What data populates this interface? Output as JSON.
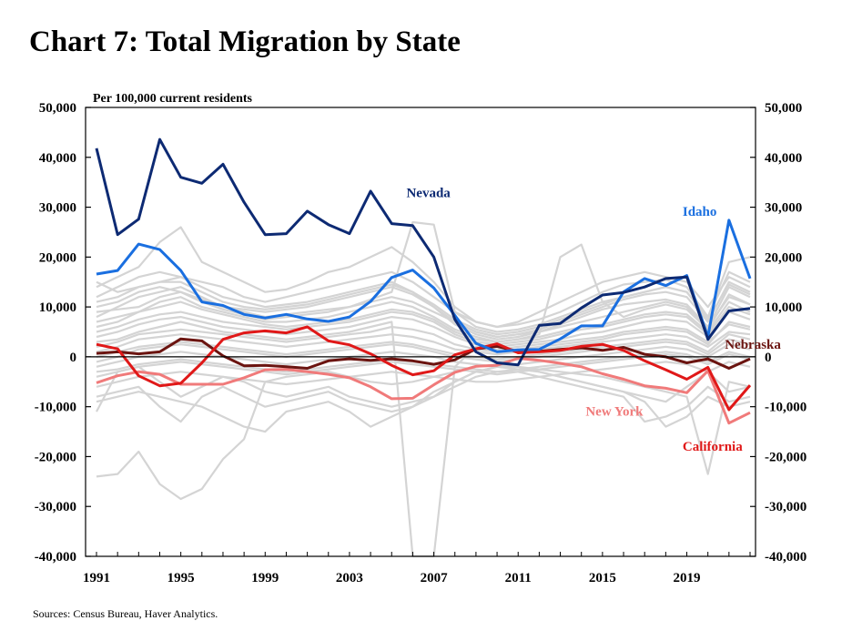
{
  "title": "Chart 7: Total Migration by State",
  "source": "Sources: Census Bureau, Haver Analytics.",
  "chart_data": {
    "type": "line",
    "title": "Chart 7: Total Migration by State",
    "unit_label": "Per 100,000 current residents",
    "xlabel": "",
    "ylabel": "",
    "xlim": [
      1991,
      2022
    ],
    "ylim": [
      -40000,
      50000
    ],
    "x_ticks": [
      "1991",
      "1995",
      "1999",
      "2003",
      "2007",
      "2011",
      "2015",
      "2019"
    ],
    "y_ticks_left": [
      "50,000",
      "40,000",
      "30,000",
      "20,000",
      "10,000",
      "0",
      "-10,000",
      "-20,000",
      "-30,000",
      "-40,000"
    ],
    "y_ticks_right": [
      "50,000",
      "40,000",
      "30,000",
      "20,000",
      "10,000",
      "0",
      "-10,000",
      "-20,000",
      "-30,000",
      "-40,000"
    ],
    "grid": false,
    "legend": "inline labels",
    "x": [
      1991,
      1992,
      1993,
      1994,
      1995,
      1996,
      1997,
      1998,
      1999,
      2000,
      2001,
      2002,
      2003,
      2004,
      2005,
      2006,
      2007,
      2008,
      2009,
      2010,
      2011,
      2012,
      2013,
      2014,
      2015,
      2016,
      2017,
      2018,
      2019,
      2020,
      2021,
      2022
    ],
    "series": [
      {
        "name": "Nevada",
        "color": "#0d2a73",
        "label_pos": [
          2005.7,
          32000
        ],
        "values": [
          41800,
          24500,
          27600,
          43600,
          36000,
          34800,
          38600,
          31000,
          24500,
          24700,
          29200,
          26500,
          24700,
          33200,
          26700,
          26300,
          20000,
          7500,
          1000,
          -1200,
          -1600,
          6300,
          6700,
          9800,
          12400,
          12900,
          14000,
          15700,
          16000,
          3500,
          9200,
          9700
        ]
      },
      {
        "name": "Idaho",
        "color": "#1a6fe0",
        "label_pos": [
          2018.8,
          28300
        ],
        "values": [
          16600,
          17300,
          22600,
          21500,
          17300,
          11000,
          10300,
          8500,
          7800,
          8500,
          7600,
          7100,
          8000,
          11100,
          15900,
          17400,
          13800,
          8300,
          2700,
          1000,
          1400,
          1500,
          3600,
          6200,
          6200,
          13000,
          15700,
          14300,
          16300,
          4000,
          27400,
          15700
        ]
      },
      {
        "name": "Nebraska",
        "color": "#6b1410",
        "label_pos": [
          2020.8,
          1600
        ],
        "values": [
          700,
          1000,
          600,
          1000,
          3600,
          3200,
          200,
          -1800,
          -1700,
          -2000,
          -2300,
          -800,
          -400,
          -700,
          -400,
          -800,
          -1500,
          -600,
          1600,
          2100,
          1100,
          1100,
          1500,
          1800,
          1300,
          1900,
          500,
          0,
          -1200,
          -400,
          -2300,
          -400
        ]
      },
      {
        "name": "New York",
        "color": "#f07a7a",
        "label_pos": [
          2014.2,
          -11800
        ],
        "values": [
          -5200,
          -3800,
          -3000,
          -3500,
          -5500,
          -5500,
          -5500,
          -4200,
          -2600,
          -2500,
          -3000,
          -3500,
          -4200,
          -6000,
          -8400,
          -8300,
          -5600,
          -3100,
          -1900,
          -1700,
          -300,
          -700,
          -1300,
          -2000,
          -3400,
          -4500,
          -5800,
          -6300,
          -7200,
          -2800,
          -13300,
          -11200
        ]
      },
      {
        "name": "California",
        "color": "#e01818",
        "label_pos": [
          2018.8,
          -18800
        ],
        "values": [
          2500,
          1600,
          -3800,
          -5800,
          -5300,
          -1200,
          3500,
          4800,
          5200,
          4800,
          6000,
          3200,
          2400,
          600,
          -1700,
          -3600,
          -2800,
          400,
          1600,
          2600,
          800,
          1000,
          1300,
          2100,
          2500,
          1300,
          -800,
          -2600,
          -4500,
          -2100,
          -10600,
          -5700
        ]
      }
    ],
    "background_series": [
      {
        "values": [
          8000,
          10000,
          12000,
          13000,
          14000,
          12000,
          10000,
          9000,
          8000,
          8500,
          9000,
          9500,
          10000,
          11000,
          12000,
          11000,
          9000,
          7000,
          5000,
          4000,
          4500,
          5000,
          6000,
          7000,
          8000,
          9000,
          10000,
          11000,
          10000,
          6000,
          14000,
          12000
        ]
      },
      {
        "values": [
          6000,
          7000,
          9000,
          10000,
          11000,
          9500,
          8500,
          7500,
          6500,
          6000,
          6500,
          7000,
          7500,
          8500,
          9500,
          9000,
          7500,
          5000,
          3500,
          3000,
          3500,
          4000,
          5000,
          6000,
          6500,
          7500,
          8500,
          9000,
          8500,
          5000,
          11000,
          9000
        ]
      },
      {
        "values": [
          4000,
          5000,
          6500,
          7500,
          8000,
          7000,
          6000,
          5500,
          5000,
          4500,
          5000,
          5500,
          6000,
          7000,
          8000,
          7500,
          6000,
          4000,
          2500,
          2000,
          2500,
          3000,
          3500,
          4500,
          5000,
          6000,
          7000,
          7500,
          7000,
          4000,
          9000,
          7500
        ]
      },
      {
        "values": [
          2000,
          3000,
          4500,
          5000,
          5500,
          5000,
          4500,
          4000,
          3500,
          3000,
          3500,
          4000,
          4500,
          5000,
          6000,
          5500,
          4500,
          2500,
          1500,
          1000,
          1500,
          2000,
          2500,
          3000,
          3500,
          4500,
          5000,
          5500,
          5000,
          2500,
          7000,
          6000
        ]
      },
      {
        "values": [
          0,
          1000,
          2000,
          2500,
          3000,
          2500,
          2000,
          1500,
          1000,
          500,
          1000,
          1500,
          2000,
          2500,
          3000,
          2500,
          1500,
          500,
          0,
          -500,
          0,
          500,
          1000,
          1500,
          2000,
          2500,
          3000,
          3500,
          3000,
          1000,
          4500,
          3500
        ]
      },
      {
        "values": [
          -2000,
          -1000,
          0,
          500,
          1000,
          500,
          0,
          -500,
          -1000,
          -1500,
          -1000,
          -500,
          0,
          500,
          1000,
          500,
          0,
          -1000,
          -1500,
          -2000,
          -1500,
          -1000,
          -500,
          0,
          500,
          1000,
          1500,
          2000,
          1500,
          0,
          2500,
          1500
        ]
      },
      {
        "values": [
          -4000,
          -3000,
          -2000,
          -1500,
          -1000,
          -1500,
          -2000,
          -2500,
          -3000,
          -3500,
          -3000,
          -2500,
          -2000,
          -1500,
          -1000,
          -1500,
          -2000,
          -2500,
          -3000,
          -3500,
          -3000,
          -2500,
          -2000,
          -1500,
          -1000,
          -500,
          0,
          500,
          0,
          -1500,
          500,
          -500
        ]
      },
      {
        "values": [
          -6000,
          -5000,
          -4000,
          -3500,
          -3000,
          -3500,
          -4000,
          -4500,
          -5000,
          -5500,
          -5000,
          -4500,
          -4000,
          -3500,
          -3000,
          -3500,
          -4000,
          -4500,
          -5000,
          -5000,
          -4500,
          -4000,
          -3500,
          -3000,
          -2500,
          -2000,
          -1500,
          -1000,
          -1500,
          -3000,
          -1000,
          -2000
        ]
      },
      {
        "values": [
          12000,
          14000,
          16000,
          17000,
          16000,
          14000,
          12000,
          11000,
          10000,
          10500,
          11000,
          12000,
          13000,
          14000,
          15000,
          13000,
          10000,
          7000,
          5000,
          4000,
          4500,
          5500,
          7000,
          8500,
          10000,
          11500,
          12500,
          13000,
          12000,
          7000,
          15000,
          13000
        ]
      },
      {
        "values": [
          14000,
          16000,
          18000,
          23000,
          26000,
          19000,
          17000,
          15000,
          13000,
          13500,
          15000,
          17000,
          18000,
          20000,
          22000,
          19000,
          15000,
          10000,
          7000,
          6000,
          6500,
          7500,
          9000,
          11000,
          13000,
          14500,
          15000,
          15500,
          14000,
          8000,
          19000,
          20000
        ]
      },
      {
        "values": [
          15000,
          13000,
          14000,
          15000,
          16000,
          15000,
          14000,
          12000,
          11000,
          12000,
          13000,
          14000,
          15000,
          16000,
          17000,
          15000,
          12000,
          9000,
          7000,
          6000,
          7000,
          9000,
          11000,
          13000,
          15000,
          16000,
          17000,
          16000,
          15000,
          10000,
          16000,
          14000
        ]
      },
      {
        "values": [
          10000,
          11000,
          13000,
          14000,
          13000,
          11500,
          10000,
          9500,
          9000,
          9500,
          10000,
          11000,
          12000,
          13000,
          14000,
          12500,
          10000,
          6500,
          4500,
          3500,
          4000,
          5000,
          6500,
          8000,
          9500,
          10500,
          11000,
          11500,
          10500,
          6000,
          12000,
          10500
        ]
      },
      {
        "values": [
          -11000,
          -3000,
          -2000,
          -5000,
          -8000,
          -6000,
          -4000,
          -5000,
          -7000,
          -8000,
          -7000,
          -6000,
          -8000,
          -9000,
          -10000,
          -9000,
          -8000,
          -5000,
          -3000,
          -2000,
          -2000,
          -3000,
          -4000,
          -5000,
          -6000,
          -7000,
          -8000,
          -9000,
          -6000,
          -3000,
          -7000,
          -6000
        ]
      },
      {
        "values": [
          -8000,
          -7000,
          -6000,
          -10000,
          -13000,
          -8000,
          -6000,
          -8000,
          -10000,
          -9000,
          -8000,
          -7000,
          -9000,
          -10000,
          -11000,
          -10000,
          -8000,
          -6000,
          -4000,
          -3000,
          -3000,
          -4000,
          -5000,
          -6000,
          -7000,
          -8000,
          -13000,
          -12000,
          -10000,
          -6000,
          -9000,
          -8000
        ]
      },
      {
        "values": [
          -9000,
          -8000,
          -7000,
          -8000,
          -9000,
          -10000,
          -12000,
          -14000,
          -15000,
          -11000,
          -10000,
          -9000,
          -11000,
          -14000,
          -12000,
          -10000,
          -7000,
          -5000,
          -3000,
          -2000,
          -2500,
          -3000,
          -4000,
          -5000,
          -6000,
          -7000,
          -9000,
          -14000,
          -12000,
          -8000,
          -10000,
          -9000
        ]
      },
      {
        "values": [
          -24000,
          -23500,
          -19000,
          -25500,
          -28500,
          -26500,
          -20500,
          -16500,
          -5000,
          -4000,
          -3500,
          -3000,
          -4000,
          -5000,
          -5500,
          -5000,
          -4000,
          -3000,
          -2000,
          -1500,
          -2000,
          -2500,
          -3000,
          -3500,
          -4000,
          -5000,
          -6000,
          -7000,
          -8000,
          -23500,
          -5000,
          -6000
        ]
      },
      {
        "values": [
          7000,
          8000,
          9000,
          11000,
          12000,
          10000,
          9000,
          8000,
          7000,
          7000,
          7500,
          8000,
          9000,
          10000,
          11000,
          10000,
          8000,
          5500,
          4000,
          3000,
          3500,
          4500,
          20000,
          22500,
          11000,
          8000,
          9500,
          10500,
          9500,
          5500,
          12500,
          10500
        ]
      },
      {
        "values": [
          9000,
          9500,
          10000,
          12000,
          13000,
          11000,
          9500,
          8500,
          7500,
          8000,
          8500,
          9000,
          10000,
          11500,
          13000,
          27000,
          26500,
          9000,
          6000,
          5000,
          5500,
          6500,
          8000,
          9500,
          11000,
          12000,
          13000,
          14000,
          13000,
          8000,
          17000,
          15000
        ]
      },
      {
        "values": [
          3000,
          3500,
          5000,
          6000,
          7000,
          6000,
          5000,
          4500,
          4000,
          3500,
          4000,
          4500,
          5000,
          6000,
          7000,
          -40000,
          -40000,
          -2000,
          2000,
          1500,
          2000,
          2500,
          3000,
          3500,
          4000,
          5000,
          5500,
          6000,
          5500,
          3000,
          6500,
          5500
        ]
      },
      {
        "values": [
          -1000,
          0,
          1500,
          2000,
          2500,
          2000,
          1500,
          1000,
          500,
          0,
          500,
          1000,
          1500,
          2000,
          2500,
          2000,
          1000,
          0,
          -500,
          -1000,
          -500,
          0,
          500,
          1000,
          1500,
          2000,
          2500,
          3000,
          2500,
          500,
          3500,
          2500
        ]
      },
      {
        "values": [
          5000,
          6000,
          7500,
          8500,
          9000,
          8000,
          7000,
          6500,
          6000,
          5500,
          6000,
          6500,
          7000,
          8000,
          9000,
          8500,
          7000,
          4500,
          3000,
          2500,
          3000,
          3500,
          4500,
          5500,
          6000,
          7000,
          8000,
          8500,
          8000,
          4500,
          10000,
          8500
        ]
      },
      {
        "values": [
          -3000,
          -2500,
          -1500,
          -1000,
          -500,
          -1000,
          -1500,
          -2000,
          -2500,
          -3000,
          -2500,
          -2000,
          -1500,
          -1000,
          -500,
          -1000,
          -1500,
          -2000,
          -2500,
          -3000,
          -2500,
          -2000,
          -1500,
          -1000,
          -500,
          0,
          500,
          1000,
          500,
          -1000,
          1000,
          0
        ]
      },
      {
        "values": [
          1000,
          2000,
          3500,
          4000,
          4500,
          4000,
          3500,
          3000,
          2500,
          2000,
          2500,
          3000,
          3500,
          4000,
          4500,
          4000,
          3000,
          1500,
          1000,
          500,
          1000,
          1500,
          2000,
          2500,
          3000,
          3500,
          4000,
          4500,
          4000,
          2000,
          5000,
          4500
        ]
      },
      {
        "values": [
          11000,
          12000,
          14000,
          15000,
          15000,
          13000,
          11000,
          10000,
          9500,
          10000,
          10500,
          11500,
          12500,
          13500,
          14500,
          13000,
          10500,
          7500,
          5500,
          4500,
          5000,
          6000,
          7500,
          9000,
          10500,
          12000,
          13000,
          14000,
          13000,
          7500,
          14500,
          12500
        ]
      }
    ]
  }
}
